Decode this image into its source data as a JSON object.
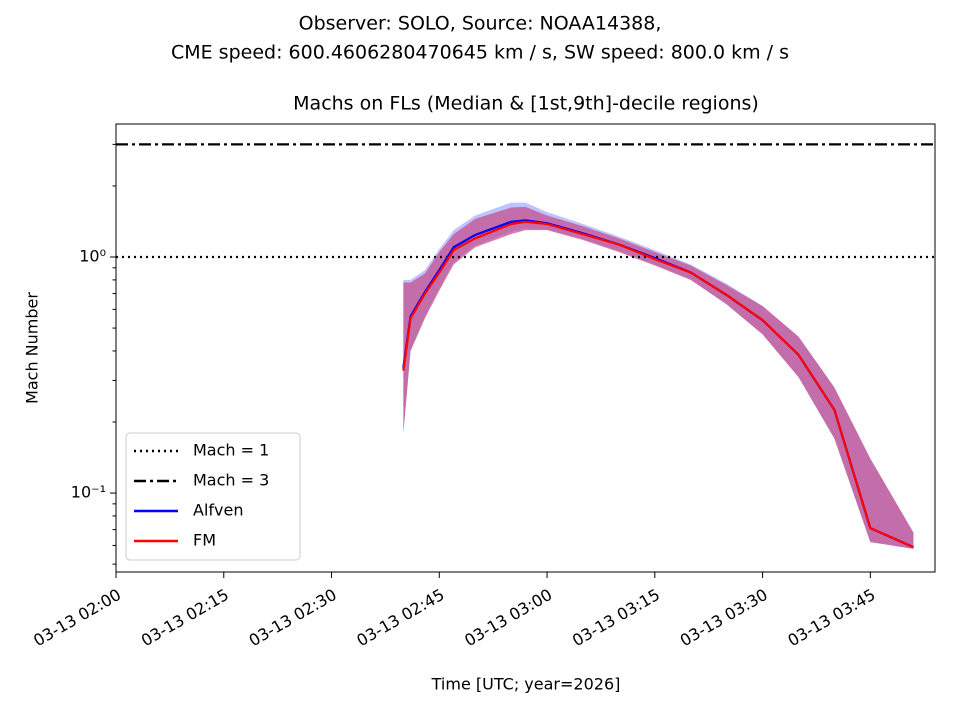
{
  "chart_data": {
    "type": "line",
    "suptitle": "Observer: SOLO, Source: NOAA14388,",
    "suptitle2": "CME speed: 600.4606280470645 km / s, SW speed: 800.0 km / s",
    "title": "Machs on FLs (Median & [1st,9th]-decile regions)",
    "xlabel": "Time [UTC; year=2026]",
    "ylabel": "Mach Number",
    "log_y": true,
    "legend": "lower left",
    "xlim": [
      "03-13 02:00",
      "03-13 03:54"
    ],
    "ylim": [
      0.0463,
      3.66
    ],
    "xticks": [
      "03-13 02:00",
      "03-13 02:15",
      "03-13 02:30",
      "03-13 02:45",
      "03-13 03:00",
      "03-13 03:15",
      "03-13 03:30",
      "03-13 03:45"
    ],
    "yticks": [
      {
        "value": 0.1,
        "label": "10⁻¹"
      },
      {
        "value": 1,
        "label": "10⁰"
      }
    ],
    "yminor": [
      0.05,
      0.06,
      0.07,
      0.08,
      0.09,
      0.2,
      0.3,
      0.4,
      0.5,
      0.6,
      0.7,
      0.8,
      0.9,
      2,
      3
    ],
    "hlines": [
      {
        "name": "Mach = 1",
        "value": 1,
        "color": "#000000",
        "dash": "2,4"
      },
      {
        "name": "Mach = 3",
        "value": 3,
        "color": "#000000",
        "dash": "12,4,3,4"
      }
    ],
    "x": [
      "03-13 02:40",
      "03-13 02:41",
      "03-13 02:43",
      "03-13 02:45",
      "03-13 02:47",
      "03-13 02:50",
      "03-13 02:55",
      "03-13 02:57",
      "03-13 03:00",
      "03-13 03:05",
      "03-13 03:10",
      "03-13 03:15",
      "03-13 03:20",
      "03-13 03:25",
      "03-13 03:30",
      "03-13 03:35",
      "03-13 03:40",
      "03-13 03:45",
      "03-13 03:51"
    ],
    "series": [
      {
        "name": "Alfven",
        "color": "#0000ff",
        "band_color": "#6e7cff",
        "values": [
          0.34,
          0.56,
          0.71,
          0.88,
          1.1,
          1.24,
          1.41,
          1.43,
          1.39,
          1.26,
          1.13,
          0.99,
          0.86,
          0.69,
          0.54,
          0.385,
          0.225,
          0.071,
          0.059
        ],
        "lower": [
          0.18,
          0.4,
          0.56,
          0.74,
          0.95,
          1.12,
          1.28,
          1.32,
          1.31,
          1.19,
          1.06,
          0.93,
          0.8,
          0.63,
          0.47,
          0.31,
          0.17,
          0.062,
          0.058
        ],
        "upper": [
          0.8,
          0.8,
          0.88,
          1.08,
          1.3,
          1.5,
          1.7,
          1.7,
          1.55,
          1.38,
          1.22,
          1.07,
          0.93,
          0.77,
          0.62,
          0.46,
          0.28,
          0.14,
          0.068
        ]
      },
      {
        "name": "FM",
        "color": "#ff0000",
        "band_color": "#c6508f",
        "values": [
          0.33,
          0.55,
          0.7,
          0.86,
          1.07,
          1.2,
          1.38,
          1.41,
          1.38,
          1.25,
          1.13,
          0.98,
          0.86,
          0.69,
          0.54,
          0.385,
          0.225,
          0.071,
          0.059
        ],
        "lower": [
          0.18,
          0.4,
          0.55,
          0.72,
          0.93,
          1.1,
          1.25,
          1.3,
          1.3,
          1.18,
          1.05,
          0.92,
          0.8,
          0.63,
          0.47,
          0.31,
          0.17,
          0.062,
          0.058
        ],
        "upper": [
          0.78,
          0.78,
          0.85,
          1.05,
          1.25,
          1.45,
          1.62,
          1.63,
          1.5,
          1.35,
          1.2,
          1.05,
          0.92,
          0.76,
          0.62,
          0.46,
          0.28,
          0.14,
          0.068
        ]
      }
    ]
  }
}
